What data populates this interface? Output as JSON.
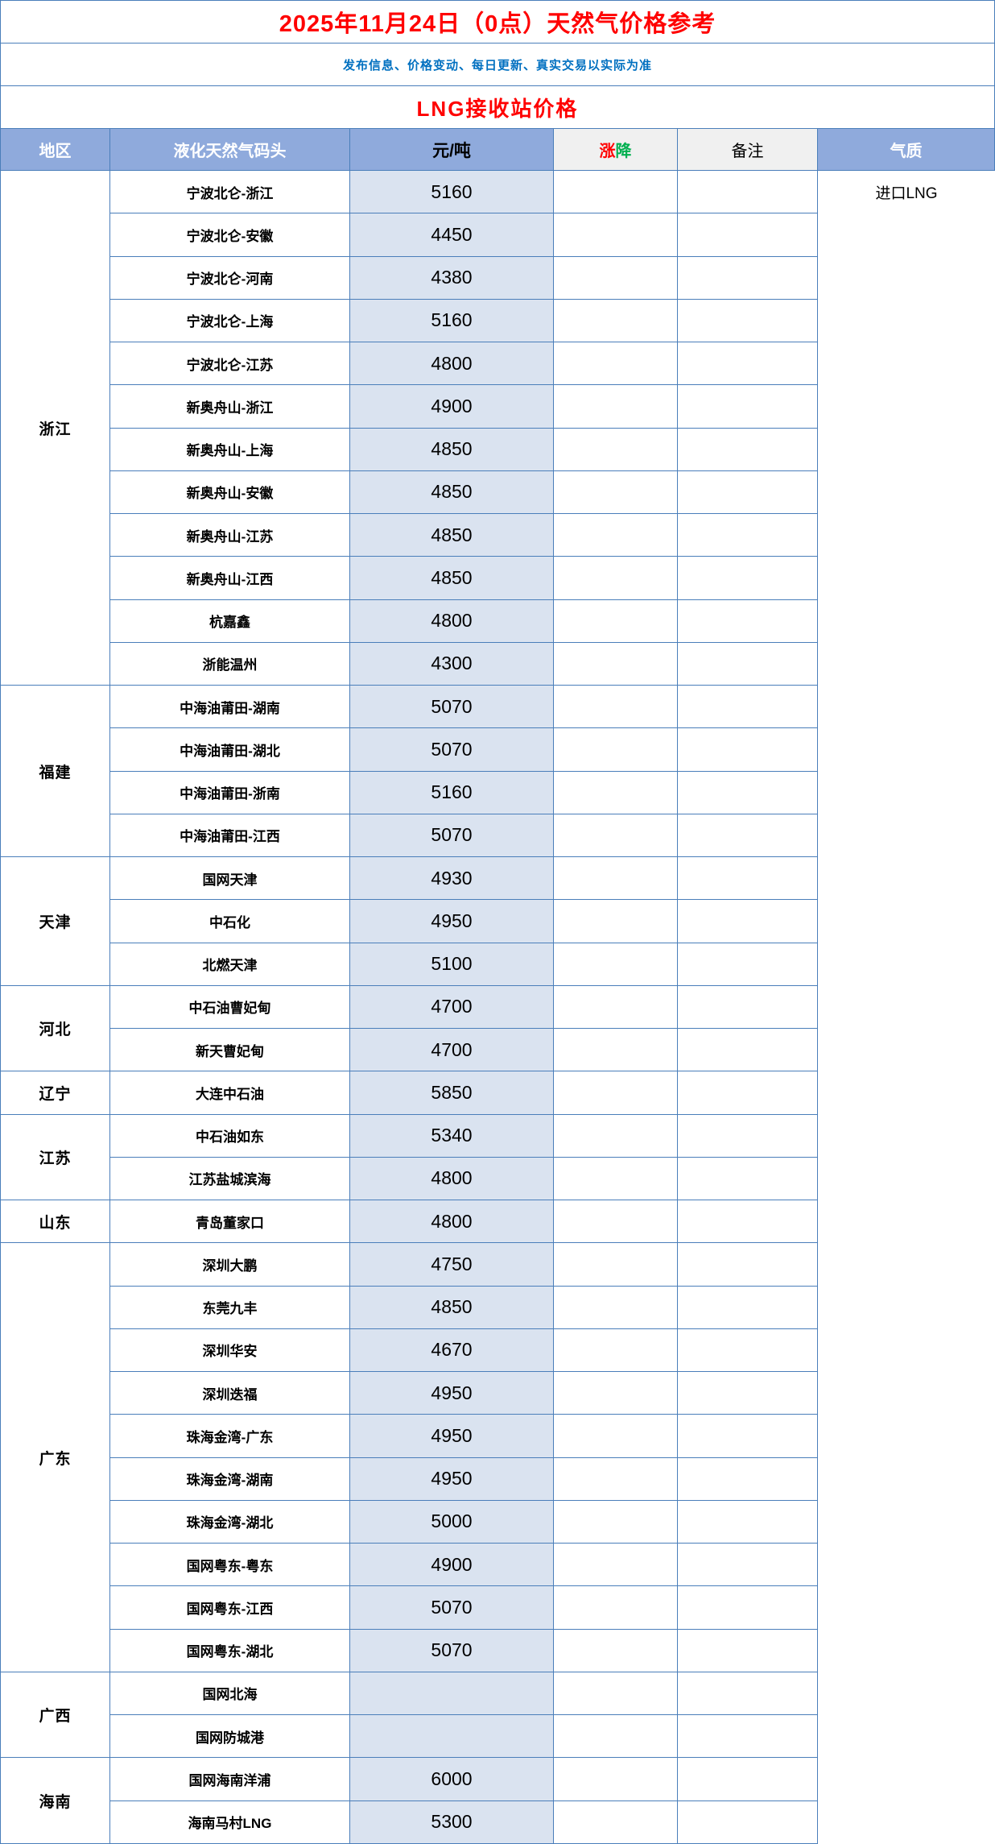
{
  "page": {
    "title": "2025年11月24日（0点）天然气价格参考",
    "subtitle": "发布信息、价格变动、每日更新、真实交易以实际为准",
    "section_title": "LNG接收站价格"
  },
  "colors": {
    "title_red": "#ff0000",
    "subtitle_blue": "#0070c0",
    "header_blue_bg": "#8faadc",
    "price_cell_bg": "#dae3f0",
    "gray_header_bg": "#f0f0f0",
    "grid_border_blue": "#4a7eba",
    "up_red": "#ff0000",
    "down_green": "#00b050"
  },
  "table": {
    "headers": {
      "region": "地区",
      "terminal": "液化天然气码头",
      "unit": "元/吨",
      "change_up": "涨",
      "change_down": "降",
      "note": "备注",
      "quality": "气质"
    },
    "quality_value": "进口LNG",
    "groups": [
      {
        "region": "浙江",
        "rows": [
          {
            "terminal": "宁波北仑-浙江",
            "price": "5160",
            "change": "",
            "note": ""
          },
          {
            "terminal": "宁波北仑-安徽",
            "price": "4450",
            "change": "",
            "note": ""
          },
          {
            "terminal": "宁波北仑-河南",
            "price": "4380",
            "change": "",
            "note": ""
          },
          {
            "terminal": "宁波北仑-上海",
            "price": "5160",
            "change": "",
            "note": ""
          },
          {
            "terminal": "宁波北仑-江苏",
            "price": "4800",
            "change": "",
            "note": ""
          },
          {
            "terminal": "新奥舟山-浙江",
            "price": "4900",
            "change": "",
            "note": ""
          },
          {
            "terminal": "新奥舟山-上海",
            "price": "4850",
            "change": "",
            "note": ""
          },
          {
            "terminal": "新奥舟山-安徽",
            "price": "4850",
            "change": "",
            "note": ""
          },
          {
            "terminal": "新奥舟山-江苏",
            "price": "4850",
            "change": "",
            "note": ""
          },
          {
            "terminal": "新奥舟山-江西",
            "price": "4850",
            "change": "",
            "note": ""
          },
          {
            "terminal": "杭嘉鑫",
            "price": "4800",
            "change": "",
            "note": ""
          },
          {
            "terminal": "浙能温州",
            "price": "4300",
            "change": "",
            "note": ""
          }
        ]
      },
      {
        "region": "福建",
        "rows": [
          {
            "terminal": "中海油莆田-湖南",
            "price": "5070",
            "change": "",
            "note": ""
          },
          {
            "terminal": "中海油莆田-湖北",
            "price": "5070",
            "change": "",
            "note": ""
          },
          {
            "terminal": "中海油莆田-浙南",
            "price": "5160",
            "change": "",
            "note": ""
          },
          {
            "terminal": "中海油莆田-江西",
            "price": "5070",
            "change": "",
            "note": ""
          }
        ]
      },
      {
        "region": "天津",
        "rows": [
          {
            "terminal": "国网天津",
            "price": "4930",
            "change": "",
            "note": ""
          },
          {
            "terminal": "中石化",
            "price": "4950",
            "change": "",
            "note": ""
          },
          {
            "terminal": "北燃天津",
            "price": "5100",
            "change": "",
            "note": ""
          }
        ]
      },
      {
        "region": "河北",
        "rows": [
          {
            "terminal": "中石油曹妃甸",
            "price": "4700",
            "change": "",
            "note": ""
          },
          {
            "terminal": "新天曹妃甸",
            "price": "4700",
            "change": "",
            "note": ""
          }
        ]
      },
      {
        "region": "辽宁",
        "rows": [
          {
            "terminal": "大连中石油",
            "price": "5850",
            "change": "",
            "note": ""
          }
        ]
      },
      {
        "region": "江苏",
        "rows": [
          {
            "terminal": "中石油如东",
            "price": "5340",
            "change": "",
            "note": ""
          },
          {
            "terminal": "江苏盐城滨海",
            "price": "4800",
            "change": "",
            "note": ""
          }
        ]
      },
      {
        "region": "山东",
        "rows": [
          {
            "terminal": "青岛董家口",
            "price": "4800",
            "change": "",
            "note": ""
          }
        ]
      },
      {
        "region": "广东",
        "rows": [
          {
            "terminal": "深圳大鹏",
            "price": "4750",
            "change": "",
            "note": ""
          },
          {
            "terminal": "东莞九丰",
            "price": "4850",
            "change": "",
            "note": ""
          },
          {
            "terminal": "深圳华安",
            "price": "4670",
            "change": "",
            "note": ""
          },
          {
            "terminal": "深圳迭福",
            "price": "4950",
            "change": "",
            "note": ""
          },
          {
            "terminal": "珠海金湾-广东",
            "price": "4950",
            "change": "",
            "note": ""
          },
          {
            "terminal": "珠海金湾-湖南",
            "price": "4950",
            "change": "",
            "note": ""
          },
          {
            "terminal": "珠海金湾-湖北",
            "price": "5000",
            "change": "",
            "note": ""
          },
          {
            "terminal": "国网粤东-粤东",
            "price": "4900",
            "change": "",
            "note": ""
          },
          {
            "terminal": "国网粤东-江西",
            "price": "5070",
            "change": "",
            "note": ""
          },
          {
            "terminal": "国网粤东-湖北",
            "price": "5070",
            "change": "",
            "note": ""
          }
        ]
      },
      {
        "region": "广西",
        "rows": [
          {
            "terminal": "国网北海",
            "price": "",
            "change": "",
            "note": ""
          },
          {
            "terminal": "国网防城港",
            "price": "",
            "change": "",
            "note": ""
          }
        ]
      },
      {
        "region": "海南",
        "rows": [
          {
            "terminal": "国网海南洋浦",
            "price": "6000",
            "change": "",
            "note": ""
          },
          {
            "terminal": "海南马村LNG",
            "price": "5300",
            "change": "",
            "note": ""
          }
        ]
      }
    ]
  }
}
